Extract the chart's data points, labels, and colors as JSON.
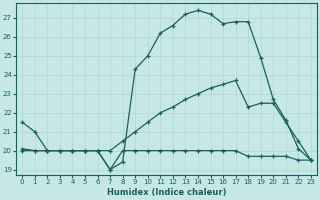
{
  "xlabel": "Humidex (Indice chaleur)",
  "xlim": [
    -0.5,
    23.5
  ],
  "ylim": [
    18.7,
    27.8
  ],
  "yticks": [
    19,
    20,
    21,
    22,
    23,
    24,
    25,
    26,
    27
  ],
  "xticks": [
    0,
    1,
    2,
    3,
    4,
    5,
    6,
    7,
    8,
    9,
    10,
    11,
    12,
    13,
    14,
    15,
    16,
    17,
    18,
    19,
    20,
    21,
    22,
    23
  ],
  "bg_color": "#c5e8e4",
  "grid_color": "#b0d8d4",
  "line_color": "#1a6060",
  "line1_x": [
    0,
    1,
    2,
    3,
    4,
    5,
    6,
    7,
    8,
    9,
    10,
    11,
    12,
    13,
    14,
    15,
    16,
    17,
    18,
    19,
    20,
    21,
    22,
    23
  ],
  "line1_y": [
    21.5,
    21.0,
    20.0,
    20.0,
    20.0,
    20.0,
    20.0,
    19.0,
    19.4,
    24.3,
    25.0,
    26.2,
    26.6,
    27.2,
    27.4,
    27.2,
    26.7,
    26.8,
    26.8,
    24.9,
    22.7,
    21.6,
    20.1,
    19.5
  ],
  "line2_x": [
    0,
    1,
    2,
    3,
    4,
    5,
    6,
    7,
    8,
    9,
    10,
    11,
    12,
    13,
    14,
    15,
    16,
    17,
    18,
    19,
    20,
    21,
    22,
    23
  ],
  "line2_y": [
    20.0,
    20.0,
    20.0,
    20.0,
    20.0,
    20.0,
    20.0,
    20.0,
    20.5,
    21.0,
    21.5,
    22.0,
    22.3,
    22.7,
    23.0,
    23.3,
    23.5,
    23.7,
    22.3,
    22.5,
    22.5,
    21.5,
    20.5,
    19.5
  ],
  "line3_x": [
    0,
    1,
    2,
    3,
    4,
    5,
    6,
    7,
    8,
    9,
    10,
    11,
    12,
    13,
    14,
    15,
    16,
    17,
    18,
    19,
    20,
    21,
    22,
    23
  ],
  "line3_y": [
    20.1,
    20.0,
    20.0,
    20.0,
    20.0,
    20.0,
    20.0,
    19.0,
    20.0,
    20.0,
    20.0,
    20.0,
    20.0,
    20.0,
    20.0,
    20.0,
    20.0,
    20.0,
    19.7,
    19.7,
    19.7,
    19.7,
    19.5,
    19.5
  ]
}
